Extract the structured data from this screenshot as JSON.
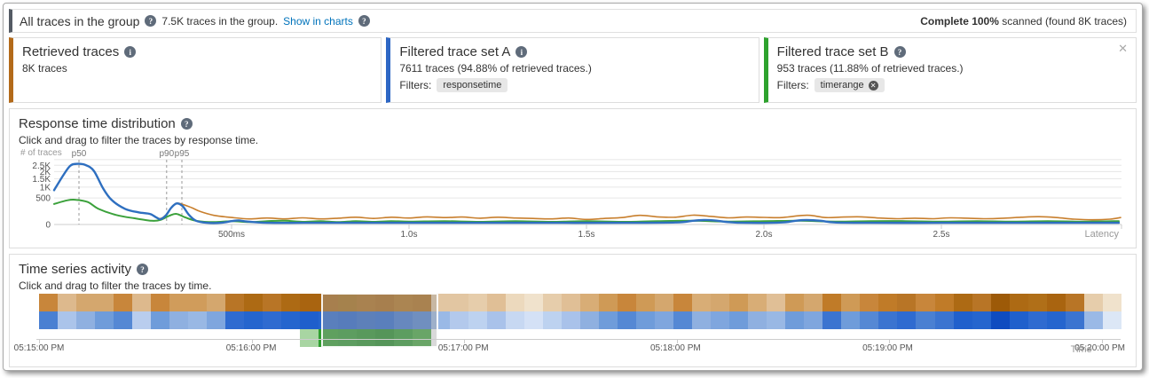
{
  "icons": {
    "help": "?",
    "info": "i",
    "close": "✕",
    "remove": "✕"
  },
  "header": {
    "title": "All traces in the group",
    "subtitle": "7.5K traces in the group.",
    "link": "Show in charts",
    "status_bold": "Complete 100%",
    "status_rest": " scanned (found 8K traces)"
  },
  "cards": {
    "retrieved": {
      "title": "Retrieved traces",
      "body": "8K traces",
      "accent": "#b36a19"
    },
    "setA": {
      "title": "Filtered trace set A",
      "body": "7611 traces (94.88% of retrieved traces.)",
      "filters_label": "Filters:",
      "filter_tag": "responsetime",
      "accent": "#2d66c4"
    },
    "setB": {
      "title": "Filtered trace set B",
      "body": "953 traces (11.88% of retrieved traces.)",
      "filters_label": "Filters:",
      "filter_tag": "timerange",
      "accent": "#2ea22e"
    }
  },
  "response_panel": {
    "title": "Response time distribution",
    "subtitle": "Click and drag to filter the traces by response time."
  },
  "time_panel": {
    "title": "Time series activity",
    "subtitle": "Click and drag to filter the traces by time."
  },
  "chart_data": [
    {
      "type": "line",
      "title": "Response time distribution",
      "xlabel": "Latency",
      "ylabel": "# of traces",
      "x_unit": "ms",
      "xlim": [
        0,
        3000
      ],
      "ylim": [
        0,
        3000
      ],
      "yscale": "sqrt",
      "grid": true,
      "y_ticks": [
        {
          "v": 0,
          "label": "0"
        },
        {
          "v": 500,
          "label": "500"
        },
        {
          "v": 1000,
          "label": "1K"
        },
        {
          "v": 1500,
          "label": "1.5K"
        },
        {
          "v": 2000,
          "label": "2K"
        },
        {
          "v": 2500,
          "label": "2.5K"
        }
      ],
      "x_ticks": [
        {
          "ms": 500,
          "label": "500ms"
        },
        {
          "ms": 1000,
          "label": "1.0s"
        },
        {
          "ms": 1500,
          "label": "1.5s"
        },
        {
          "ms": 2000,
          "label": "2.0s"
        },
        {
          "ms": 2500,
          "label": "2.5s"
        }
      ],
      "percentiles": [
        {
          "label": "p50",
          "ms": 70
        },
        {
          "label": "p90",
          "ms": 317
        },
        {
          "label": "p95",
          "ms": 360
        }
      ],
      "series": [
        {
          "name": "Retrieved traces",
          "color": "#c87f2d",
          "width": 1.6,
          "points": [
            [
              0,
              840
            ],
            [
              25,
              1700
            ],
            [
              45,
              2450
            ],
            [
              62,
              2620
            ],
            [
              88,
              2530
            ],
            [
              112,
              2050
            ],
            [
              138,
              930
            ],
            [
              162,
              430
            ],
            [
              200,
              175
            ],
            [
              238,
              105
            ],
            [
              270,
              80
            ],
            [
              288,
              35
            ],
            [
              300,
              25
            ],
            [
              315,
              65
            ],
            [
              330,
              205
            ],
            [
              345,
              320
            ],
            [
              362,
              290
            ],
            [
              388,
              200
            ],
            [
              412,
              120
            ],
            [
              450,
              60
            ],
            [
              500,
              35
            ],
            [
              550,
              22
            ],
            [
              600,
              30
            ],
            [
              650,
              22
            ],
            [
              700,
              32
            ],
            [
              750,
              22
            ],
            [
              800,
              28
            ],
            [
              850,
              38
            ],
            [
              900,
              26
            ],
            [
              950,
              38
            ],
            [
              1000,
              30
            ],
            [
              1050,
              42
            ],
            [
              1100,
              34
            ],
            [
              1150,
              40
            ],
            [
              1200,
              28
            ],
            [
              1250,
              38
            ],
            [
              1300,
              30
            ],
            [
              1350,
              26
            ],
            [
              1400,
              22
            ],
            [
              1450,
              30
            ],
            [
              1500,
              18
            ],
            [
              1550,
              26
            ],
            [
              1600,
              34
            ],
            [
              1650,
              60
            ],
            [
              1700,
              42
            ],
            [
              1750,
              38
            ],
            [
              1800,
              62
            ],
            [
              1850,
              48
            ],
            [
              1900,
              32
            ],
            [
              1950,
              40
            ],
            [
              2000,
              36
            ],
            [
              2050,
              34
            ],
            [
              2100,
              55
            ],
            [
              2130,
              60
            ],
            [
              2175,
              34
            ],
            [
              2225,
              40
            ],
            [
              2275,
              42
            ],
            [
              2325,
              30
            ],
            [
              2375,
              24
            ],
            [
              2425,
              28
            ],
            [
              2475,
              24
            ],
            [
              2525,
              32
            ],
            [
              2575,
              28
            ],
            [
              2625,
              24
            ],
            [
              2675,
              28
            ],
            [
              2725,
              38
            ],
            [
              2775,
              44
            ],
            [
              2825,
              34
            ],
            [
              2875,
              20
            ],
            [
              2925,
              16
            ],
            [
              2975,
              20
            ],
            [
              3005,
              34
            ]
          ]
        },
        {
          "name": "Filtered trace set B",
          "color": "#3ba13b",
          "width": 2,
          "points": [
            [
              0,
              300
            ],
            [
              38,
              420
            ],
            [
              62,
              435
            ],
            [
              95,
              360
            ],
            [
              125,
              175
            ],
            [
              175,
              64
            ],
            [
              225,
              28
            ],
            [
              275,
              10
            ],
            [
              300,
              15
            ],
            [
              325,
              55
            ],
            [
              345,
              80
            ],
            [
              370,
              35
            ],
            [
              400,
              10
            ],
            [
              450,
              4
            ],
            [
              500,
              8
            ],
            [
              550,
              4
            ],
            [
              600,
              8
            ],
            [
              650,
              10
            ],
            [
              700,
              5
            ],
            [
              750,
              8
            ],
            [
              800,
              4
            ],
            [
              850,
              8
            ],
            [
              900,
              5
            ],
            [
              950,
              8
            ],
            [
              1000,
              6
            ],
            [
              1100,
              8
            ],
            [
              1200,
              5
            ],
            [
              1300,
              8
            ],
            [
              1400,
              5
            ],
            [
              1500,
              8
            ],
            [
              1600,
              5
            ],
            [
              1700,
              8
            ],
            [
              1800,
              10
            ],
            [
              1900,
              6
            ],
            [
              2000,
              8
            ],
            [
              2100,
              10
            ],
            [
              2200,
              6
            ],
            [
              2300,
              8
            ],
            [
              2400,
              8
            ],
            [
              2500,
              6
            ],
            [
              2600,
              8
            ],
            [
              2700,
              6
            ],
            [
              2800,
              8
            ],
            [
              2900,
              6
            ],
            [
              3000,
              8
            ]
          ]
        },
        {
          "name": "Filtered trace set A",
          "color": "#2e6fc0",
          "width": 2.4,
          "points": [
            [
              0,
              840
            ],
            [
              25,
              1700
            ],
            [
              45,
              2450
            ],
            [
              62,
              2620
            ],
            [
              88,
              2530
            ],
            [
              112,
              2050
            ],
            [
              138,
              930
            ],
            [
              162,
              430
            ],
            [
              200,
              175
            ],
            [
              238,
              105
            ],
            [
              270,
              80
            ],
            [
              288,
              35
            ],
            [
              300,
              20
            ],
            [
              315,
              60
            ],
            [
              330,
              200
            ],
            [
              345,
              315
            ],
            [
              362,
              240
            ],
            [
              380,
              65
            ],
            [
              400,
              10
            ],
            [
              430,
              2
            ],
            [
              470,
              2
            ],
            [
              500,
              8
            ],
            [
              520,
              12
            ],
            [
              545,
              6
            ],
            [
              600,
              2
            ],
            [
              700,
              2
            ],
            [
              800,
              2
            ],
            [
              900,
              2
            ],
            [
              1000,
              2
            ],
            [
              1200,
              2
            ],
            [
              1400,
              2
            ],
            [
              1600,
              2
            ],
            [
              1750,
              3
            ],
            [
              1800,
              10
            ],
            [
              1830,
              14
            ],
            [
              1860,
              12
            ],
            [
              1900,
              4
            ],
            [
              1950,
              2
            ],
            [
              2050,
              3
            ],
            [
              2090,
              10
            ],
            [
              2120,
              14
            ],
            [
              2160,
              10
            ],
            [
              2200,
              3
            ],
            [
              2300,
              2
            ],
            [
              2500,
              2
            ],
            [
              2700,
              2
            ],
            [
              2900,
              2
            ],
            [
              3000,
              2
            ]
          ]
        }
      ]
    },
    {
      "type": "heatmap",
      "title": "Time series activity",
      "xlabel": "Time",
      "cell_seconds": 5,
      "x_labels": [
        "05:15:00 PM",
        "05:16:00 PM",
        "05:17:00 PM",
        "05:18:00 PM",
        "05:19:00 PM",
        "05:20:00 PM"
      ],
      "tick_pct": [
        0,
        19.6,
        39.2,
        58.8,
        78.4,
        98.0
      ],
      "time_label_pct": 95.3,
      "selection": {
        "left_pct": 26.1,
        "width_pct": 10.8
      },
      "rows": [
        {
          "name": "retrieved-activity",
          "colors": [
            "#c8863b",
            "#ddb98d",
            "#d4a76e",
            "#d4a76e",
            "#c8863b",
            "#ddb98d",
            "#c8863b",
            "#d09c5b",
            "#d09c5b",
            "#d4a76e",
            "#b87526",
            "#ad6a14",
            "#b87526",
            "#ad6a14",
            "#a96410",
            "#a96410",
            "#a5690f",
            "#ad6a14",
            "#a96410",
            "#b06f18",
            "#ad6a14",
            "#e2c6a2",
            "#e2c6a2",
            "#e6cdab",
            "#e0bf96",
            "#ecd9bd",
            "#f0e2cc",
            "#e6cdab",
            "#e0bf96",
            "#d8ad76",
            "#cf9a56",
            "#c8863b",
            "#cf9a56",
            "#d4a76e",
            "#c8863b",
            "#d8ad76",
            "#d4a76e",
            "#cf9a56",
            "#d8ad76",
            "#e0bf96",
            "#cf9a56",
            "#d4a76e",
            "#c07b28",
            "#cf9a56",
            "#c8863b",
            "#c07b28",
            "#b87526",
            "#c8863b",
            "#c07b28",
            "#ad6a14",
            "#b87526",
            "#9d5a08",
            "#ad6a14",
            "#b06f18",
            "#a96410",
            "#b87526",
            "#e6cdab",
            "#f0e2cc"
          ]
        },
        {
          "name": "set-a-activity",
          "colors": [
            "#4a80d2",
            "#abc4ea",
            "#8fb0e0",
            "#6f9cda",
            "#5588d4",
            "#b9cdee",
            "#6f9cda",
            "#8fb0e0",
            "#99b8e4",
            "#7fa6de",
            "#2f6bd0",
            "#2565ce",
            "#2f6bd0",
            "#2565ce",
            "#1f5fcc",
            "#2565ce",
            "#2060cc",
            "#2a66c8",
            "#2565ce",
            "#3b74d0",
            "#4a80d2",
            "#9ab9e6",
            "#b3c9ec",
            "#bdd2f0",
            "#a9c2ea",
            "#c7d8f2",
            "#d4e1f6",
            "#bdd2f0",
            "#a9c2ea",
            "#8fb0e0",
            "#6f9cda",
            "#5588d4",
            "#6f9cda",
            "#7fa6de",
            "#5588d4",
            "#8fb0e0",
            "#7fa6de",
            "#6f9cda",
            "#8fb0e0",
            "#99b8e4",
            "#6f9cda",
            "#7fa6de",
            "#3b74d0",
            "#6f9cda",
            "#5588d4",
            "#3b74d0",
            "#2f6bd0",
            "#4a80d2",
            "#3b74d0",
            "#2060cc",
            "#2565ce",
            "#0f4cc0",
            "#2060cc",
            "#2f6bd0",
            "#2565ce",
            "#3b74d0",
            "#9ab9e6",
            "#dce7f6"
          ]
        },
        {
          "name": "set-b-activity",
          "colors": [
            null,
            null,
            null,
            null,
            null,
            null,
            null,
            null,
            null,
            null,
            null,
            null,
            null,
            null,
            "#a8d5a2",
            "#2e9e2e",
            "#2a9830",
            "#239128",
            "#1d8a24",
            "#2a9830",
            "#3fa63c",
            null,
            null,
            null,
            null,
            null,
            null,
            null,
            null,
            null,
            null,
            null,
            null,
            null,
            null,
            null,
            null,
            null,
            null,
            null,
            null,
            null,
            null,
            null,
            null,
            null,
            null,
            null,
            null,
            null,
            null,
            null,
            null,
            null,
            null,
            null,
            null,
            null
          ]
        }
      ]
    }
  ]
}
